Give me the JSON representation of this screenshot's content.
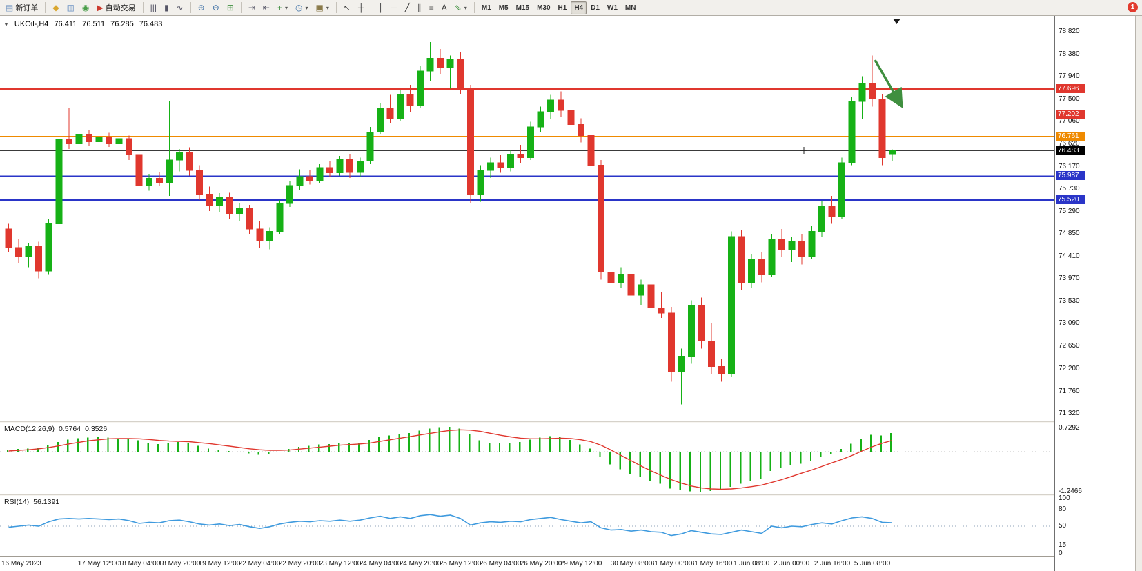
{
  "colors": {
    "up": "#16b116",
    "down": "#e0372e",
    "macd_signal": "#e0372e",
    "rsi_line": "#3e9ade",
    "orange_line": "#ef8a00",
    "blue_line": "#2a35c8",
    "red_line": "#e0372e",
    "current_price_line": "#3a3a3a",
    "arrow": "#3f8f3f"
  },
  "toolbar": {
    "caret_glyph": "▾",
    "notification_count": "1",
    "items": [
      {
        "name": "new-order-button",
        "glyph": "▤",
        "color": "#7c9cc4",
        "label": "新订单"
      },
      {
        "type": "sep"
      },
      {
        "name": "market-watch-icon",
        "glyph": "◆",
        "color": "#d9a62e"
      },
      {
        "name": "data-window-icon",
        "glyph": "▥",
        "color": "#6f94c4"
      },
      {
        "name": "navigator-icon",
        "glyph": "◉",
        "color": "#4a9e4a"
      },
      {
        "name": "auto-trading-button",
        "glyph": "▶",
        "color": "#cc3b2f",
        "label": "自动交易"
      },
      {
        "type": "sep"
      },
      {
        "name": "bar-chart-icon",
        "glyph": "|||",
        "color": "#556"
      },
      {
        "name": "candlestick-chart-icon",
        "glyph": "▮",
        "color": "#556"
      },
      {
        "name": "line-chart-icon",
        "glyph": "∿",
        "color": "#556"
      },
      {
        "type": "sep"
      },
      {
        "name": "zoom-in-icon",
        "glyph": "⊕",
        "color": "#3b6ea5"
      },
      {
        "name": "zoom-out-icon",
        "glyph": "⊖",
        "color": "#3b6ea5"
      },
      {
        "name": "tile-windows-icon",
        "glyph": "⊞",
        "color": "#3f8f3f"
      },
      {
        "type": "sep"
      },
      {
        "name": "auto-scroll-icon",
        "glyph": "⇥",
        "color": "#556"
      },
      {
        "name": "chart-shift-icon",
        "glyph": "⇤",
        "color": "#556"
      },
      {
        "name": "indicators-icon",
        "glyph": "+",
        "color": "#3f8f3f",
        "dropdown": true
      },
      {
        "name": "periods-icon",
        "glyph": "◷",
        "color": "#3b6ea5",
        "dropdown": true
      },
      {
        "name": "templates-icon",
        "glyph": "▣",
        "color": "#8a7a4a",
        "dropdown": true
      },
      {
        "type": "sep"
      },
      {
        "name": "cursor-icon",
        "glyph": "↖",
        "color": "#333"
      },
      {
        "name": "crosshair-icon",
        "glyph": "┼",
        "color": "#333"
      },
      {
        "type": "sep"
      },
      {
        "name": "vertical-line-icon",
        "glyph": "│",
        "color": "#333"
      },
      {
        "name": "horizontal-line-icon",
        "glyph": "─",
        "color": "#333"
      },
      {
        "name": "trendline-icon",
        "glyph": "╱",
        "color": "#333"
      },
      {
        "name": "channel-icon",
        "glyph": "∥",
        "color": "#333"
      },
      {
        "name": "fibonacci-icon",
        "glyph": "≡",
        "color": "#333"
      },
      {
        "name": "text-tool-icon",
        "glyph": "A",
        "color": "#333"
      },
      {
        "name": "arrows-tool-icon",
        "glyph": "⇘",
        "color": "#3f8f3f",
        "dropdown": true
      },
      {
        "type": "sep"
      },
      {
        "name": "timeframe-m1-button",
        "label": "M1",
        "tf": true
      },
      {
        "name": "timeframe-m5-button",
        "label": "M5",
        "tf": true
      },
      {
        "name": "timeframe-m15-button",
        "label": "M15",
        "tf": true
      },
      {
        "name": "timeframe-m30-button",
        "label": "M30",
        "tf": true
      },
      {
        "name": "timeframe-h1-button",
        "label": "H1",
        "tf": true
      },
      {
        "name": "timeframe-h4-button",
        "label": "H4",
        "tf": true,
        "active": true
      },
      {
        "name": "timeframe-d1-button",
        "label": "D1",
        "tf": true
      },
      {
        "name": "timeframe-w1-button",
        "label": "W1",
        "tf": true
      },
      {
        "name": "timeframe-mn-button",
        "label": "MN",
        "tf": true
      }
    ]
  },
  "chart": {
    "collapse_glyph": "▼",
    "title_symbol": "UKOil-,H4",
    "ohlc": {
      "open": "76.411",
      "high": "76.511",
      "low": "76.285",
      "close": "76.483"
    }
  },
  "indicators": {
    "macd": {
      "label": "MACD(12,26,9)",
      "value_main": "0.5764",
      "value_signal": "0.3526",
      "axis_max": "0.7292",
      "axis_min": "-1.2466"
    },
    "rsi": {
      "label": "RSI(14)",
      "value": "56.1391",
      "ticks": [
        "100",
        "80",
        "50",
        "15",
        "0"
      ]
    }
  },
  "price_axis": {
    "ticks": [
      "78.820",
      "78.380",
      "77.940",
      "77.500",
      "77.060",
      "76.620",
      "76.170",
      "75.730",
      "75.290",
      "74.850",
      "74.410",
      "73.970",
      "73.530",
      "73.090",
      "72.650",
      "72.200",
      "71.760",
      "71.320"
    ],
    "badges": [
      {
        "label": "77.696",
        "bg": "#e0372e"
      },
      {
        "label": "77.202",
        "bg": "#e0372e"
      },
      {
        "label": "76.761",
        "bg": "#ef8a00"
      },
      {
        "label": "76.483",
        "bg": "#000000"
      },
      {
        "label": "75.987",
        "bg": "#2a35c8"
      },
      {
        "label": "75.520",
        "bg": "#2a35c8"
      }
    ]
  },
  "time_axis": {
    "labels": [
      {
        "text": "16 May 2023",
        "i": 0
      },
      {
        "text": "17 May 12:00",
        "i": 9
      },
      {
        "text": "18 May 04:00",
        "i": 13
      },
      {
        "text": "18 May 20:00",
        "i": 17
      },
      {
        "text": "19 May 12:00",
        "i": 21
      },
      {
        "text": "22 May 04:00",
        "i": 25
      },
      {
        "text": "22 May 20:00",
        "i": 29
      },
      {
        "text": "23 May 12:00",
        "i": 33
      },
      {
        "text": "24 May 04:00",
        "i": 37
      },
      {
        "text": "24 May 20:00",
        "i": 41
      },
      {
        "text": "25 May 12:00",
        "i": 45
      },
      {
        "text": "26 May 04:00",
        "i": 49
      },
      {
        "text": "26 May 20:00",
        "i": 53
      },
      {
        "text": "29 May 12:00",
        "i": 57
      },
      {
        "text": "30 May 08:00",
        "i": 62
      },
      {
        "text": "31 May 00:00",
        "i": 66
      },
      {
        "text": "31 May 16:00",
        "i": 70
      },
      {
        "text": "1 Jun 08:00",
        "i": 74
      },
      {
        "text": "2 Jun 00:00",
        "i": 78
      },
      {
        "text": "2 Jun 16:00",
        "i": 82
      },
      {
        "text": "5 Jun 08:00",
        "i": 86
      }
    ]
  },
  "chart_data": {
    "type": "candlestick",
    "title": "UKOil-,H4",
    "symbol": "UKOil-",
    "timeframe": "H4",
    "y_axis": {
      "range": [
        71.32,
        78.82
      ]
    },
    "horizontal_lines": [
      {
        "name": "resistance-line-77696",
        "price": 77.696,
        "color": "#e0372e",
        "width": 2
      },
      {
        "name": "resistance-line-77202",
        "price": 77.202,
        "color": "#e0372e",
        "width": 1
      },
      {
        "name": "pivot-line-76761",
        "price": 76.761,
        "color": "#ef8a00",
        "width": 2
      },
      {
        "name": "current-price-line",
        "price": 76.483,
        "color": "#3a3a3a",
        "width": 1
      },
      {
        "name": "support-line-75987",
        "price": 75.987,
        "color": "#2a35c8",
        "width": 2
      },
      {
        "name": "support-line-75520",
        "price": 75.52,
        "color": "#2a35c8",
        "width": 2
      }
    ],
    "candles": [
      [
        74.95,
        75.05,
        74.5,
        74.58
      ],
      [
        74.58,
        74.75,
        74.28,
        74.4
      ],
      [
        74.4,
        74.68,
        74.2,
        74.6
      ],
      [
        74.6,
        74.7,
        73.98,
        74.12
      ],
      [
        74.12,
        75.15,
        74.05,
        75.05
      ],
      [
        75.05,
        76.85,
        74.98,
        76.7
      ],
      [
        76.7,
        77.32,
        76.52,
        76.62
      ],
      [
        76.62,
        76.88,
        76.5,
        76.8
      ],
      [
        76.8,
        76.9,
        76.58,
        76.66
      ],
      [
        76.66,
        76.82,
        76.55,
        76.74
      ],
      [
        76.74,
        76.84,
        76.56,
        76.62
      ],
      [
        76.62,
        76.8,
        76.5,
        76.72
      ],
      [
        76.72,
        76.78,
        76.3,
        76.4
      ],
      [
        76.4,
        76.48,
        75.68,
        75.8
      ],
      [
        75.8,
        76.02,
        75.7,
        75.94
      ],
      [
        75.94,
        76.06,
        75.8,
        75.86
      ],
      [
        75.86,
        77.45,
        75.6,
        76.3
      ],
      [
        76.3,
        76.52,
        76.08,
        76.45
      ],
      [
        76.45,
        76.55,
        76.0,
        76.1
      ],
      [
        76.1,
        76.2,
        75.52,
        75.62
      ],
      [
        75.62,
        75.78,
        75.3,
        75.4
      ],
      [
        75.4,
        75.65,
        75.28,
        75.58
      ],
      [
        75.58,
        75.66,
        75.15,
        75.25
      ],
      [
        75.25,
        75.45,
        75.1,
        75.35
      ],
      [
        75.35,
        75.42,
        74.85,
        74.95
      ],
      [
        74.95,
        75.1,
        74.58,
        74.72
      ],
      [
        74.72,
        74.98,
        74.55,
        74.9
      ],
      [
        74.9,
        75.52,
        74.85,
        75.45
      ],
      [
        75.45,
        75.88,
        75.38,
        75.8
      ],
      [
        75.8,
        76.12,
        75.72,
        75.98
      ],
      [
        75.98,
        76.1,
        75.82,
        75.9
      ],
      [
        75.9,
        76.22,
        75.85,
        76.15
      ],
      [
        76.15,
        76.28,
        75.98,
        76.05
      ],
      [
        76.05,
        76.38,
        76.0,
        76.32
      ],
      [
        76.32,
        76.42,
        75.95,
        76.06
      ],
      [
        76.06,
        76.35,
        75.98,
        76.28
      ],
      [
        76.28,
        76.95,
        76.22,
        76.85
      ],
      [
        76.85,
        77.42,
        76.8,
        77.32
      ],
      [
        77.32,
        77.58,
        77.02,
        77.12
      ],
      [
        77.12,
        77.68,
        77.06,
        77.58
      ],
      [
        77.58,
        77.78,
        77.25,
        77.38
      ],
      [
        77.38,
        78.15,
        77.32,
        78.05
      ],
      [
        78.05,
        78.62,
        77.85,
        78.3
      ],
      [
        78.3,
        78.48,
        77.98,
        78.12
      ],
      [
        78.12,
        78.35,
        77.7,
        78.28
      ],
      [
        78.28,
        78.42,
        77.6,
        77.72
      ],
      [
        77.72,
        77.78,
        75.45,
        75.62
      ],
      [
        75.62,
        76.2,
        75.48,
        76.1
      ],
      [
        76.1,
        76.35,
        75.95,
        76.25
      ],
      [
        76.25,
        76.4,
        76.05,
        76.15
      ],
      [
        76.15,
        76.5,
        76.08,
        76.42
      ],
      [
        76.42,
        76.6,
        76.25,
        76.35
      ],
      [
        76.35,
        77.05,
        76.3,
        76.95
      ],
      [
        76.95,
        77.35,
        76.85,
        77.25
      ],
      [
        77.25,
        77.58,
        77.1,
        77.48
      ],
      [
        77.48,
        77.65,
        77.15,
        77.28
      ],
      [
        77.28,
        77.4,
        76.9,
        77.0
      ],
      [
        77.0,
        77.12,
        76.65,
        76.78
      ],
      [
        76.78,
        76.88,
        76.1,
        76.2
      ],
      [
        76.2,
        76.3,
        73.95,
        74.1
      ],
      [
        74.1,
        74.35,
        73.75,
        73.9
      ],
      [
        73.9,
        74.2,
        73.8,
        74.05
      ],
      [
        74.05,
        74.15,
        73.55,
        73.65
      ],
      [
        73.65,
        73.95,
        73.45,
        73.85
      ],
      [
        73.85,
        73.95,
        73.3,
        73.4
      ],
      [
        73.4,
        73.7,
        73.2,
        73.3
      ],
      [
        73.3,
        73.42,
        71.95,
        72.15
      ],
      [
        72.15,
        72.6,
        71.5,
        72.45
      ],
      [
        72.45,
        73.55,
        72.3,
        73.45
      ],
      [
        73.45,
        73.6,
        72.6,
        72.75
      ],
      [
        72.75,
        73.1,
        72.1,
        72.25
      ],
      [
        72.25,
        72.4,
        71.95,
        72.1
      ],
      [
        72.1,
        74.9,
        72.05,
        74.8
      ],
      [
        74.8,
        74.92,
        73.75,
        73.9
      ],
      [
        73.9,
        74.45,
        73.8,
        74.35
      ],
      [
        74.35,
        74.5,
        73.9,
        74.05
      ],
      [
        74.05,
        74.85,
        74.0,
        74.75
      ],
      [
        74.75,
        74.95,
        74.4,
        74.55
      ],
      [
        74.55,
        74.8,
        74.3,
        74.7
      ],
      [
        74.7,
        74.85,
        74.25,
        74.4
      ],
      [
        74.4,
        75.0,
        74.35,
        74.9
      ],
      [
        74.9,
        75.5,
        74.8,
        75.4
      ],
      [
        75.4,
        75.6,
        75.05,
        75.2
      ],
      [
        75.2,
        76.35,
        75.15,
        76.25
      ],
      [
        76.25,
        77.55,
        76.2,
        77.45
      ],
      [
        77.45,
        77.95,
        77.1,
        77.8
      ],
      [
        77.8,
        78.35,
        77.35,
        77.5
      ],
      [
        77.5,
        77.6,
        76.2,
        76.35
      ],
      [
        76.411,
        76.511,
        76.285,
        76.483
      ]
    ],
    "macd_histogram": [
      0.05,
      0.08,
      0.1,
      0.12,
      0.2,
      0.3,
      0.38,
      0.42,
      0.44,
      0.45,
      0.44,
      0.42,
      0.4,
      0.35,
      0.28,
      0.24,
      0.28,
      0.3,
      0.26,
      0.18,
      0.1,
      0.06,
      0.02,
      -0.02,
      -0.06,
      -0.1,
      -0.08,
      0.0,
      0.08,
      0.15,
      0.18,
      0.22,
      0.24,
      0.28,
      0.26,
      0.28,
      0.36,
      0.46,
      0.5,
      0.56,
      0.58,
      0.65,
      0.72,
      0.76,
      0.77,
      0.72,
      0.55,
      0.35,
      0.28,
      0.26,
      0.28,
      0.3,
      0.38,
      0.44,
      0.48,
      0.45,
      0.36,
      0.22,
      0.1,
      -0.15,
      -0.4,
      -0.55,
      -0.7,
      -0.8,
      -0.9,
      -1.0,
      -1.15,
      -1.2,
      -1.24,
      -1.25,
      -1.22,
      -1.18,
      -1.1,
      -1.0,
      -0.92,
      -0.85,
      -0.6,
      -0.5,
      -0.42,
      -0.38,
      -0.28,
      -0.15,
      -0.08,
      0.08,
      0.25,
      0.4,
      0.52,
      0.5,
      0.58
    ],
    "macd_signal": [
      0.02,
      0.04,
      0.06,
      0.09,
      0.13,
      0.18,
      0.24,
      0.29,
      0.34,
      0.37,
      0.4,
      0.41,
      0.41,
      0.4,
      0.38,
      0.35,
      0.33,
      0.32,
      0.31,
      0.28,
      0.25,
      0.21,
      0.17,
      0.13,
      0.09,
      0.06,
      0.04,
      0.04,
      0.05,
      0.08,
      0.11,
      0.14,
      0.17,
      0.2,
      0.22,
      0.24,
      0.27,
      0.32,
      0.37,
      0.42,
      0.47,
      0.52,
      0.57,
      0.62,
      0.66,
      0.68,
      0.67,
      0.63,
      0.57,
      0.51,
      0.46,
      0.42,
      0.4,
      0.4,
      0.41,
      0.42,
      0.41,
      0.37,
      0.31,
      0.2,
      0.05,
      -0.12,
      -0.28,
      -0.45,
      -0.6,
      -0.74,
      -0.87,
      -0.98,
      -1.07,
      -1.13,
      -1.16,
      -1.17,
      -1.16,
      -1.13,
      -1.09,
      -1.04,
      -0.96,
      -0.87,
      -0.77,
      -0.67,
      -0.57,
      -0.46,
      -0.35,
      -0.24,
      -0.12,
      0.02,
      0.15,
      0.26,
      0.35
    ],
    "macd_range": [
      -1.2466,
      0.7292
    ],
    "rsi_series": [
      48,
      50,
      52,
      50,
      58,
      63,
      64,
      63,
      64,
      63,
      62,
      63,
      60,
      55,
      57,
      56,
      60,
      61,
      58,
      54,
      52,
      54,
      51,
      53,
      49,
      46,
      49,
      54,
      57,
      59,
      58,
      60,
      59,
      61,
      59,
      61,
      65,
      68,
      64,
      67,
      64,
      69,
      71,
      68,
      70,
      64,
      52,
      56,
      58,
      57,
      59,
      58,
      62,
      64,
      66,
      62,
      59,
      56,
      58,
      47,
      43,
      44,
      41,
      43,
      40,
      39,
      33,
      36,
      42,
      39,
      36,
      35,
      39,
      43,
      40,
      37,
      50,
      47,
      50,
      49,
      53,
      56,
      54,
      60,
      65,
      67,
      64,
      57,
      56.1
    ],
    "rsi_range": [
      0,
      100
    ]
  },
  "annotations": {
    "arrow": {
      "color": "#3f8f3f",
      "direction": "down-right"
    }
  }
}
